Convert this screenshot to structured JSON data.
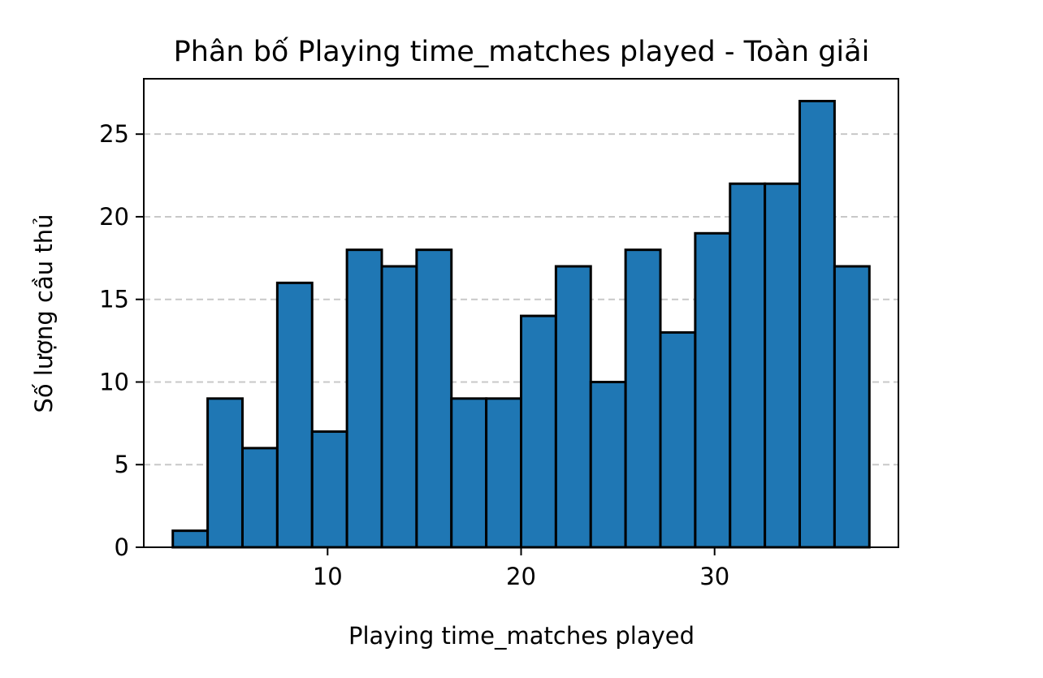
{
  "chart_data": {
    "type": "bar",
    "title": "Phân bố Playing time_matches played - Toàn giải",
    "xlabel": "Playing time_matches played",
    "ylabel": "Số lượng cầu thủ",
    "xlim": [
      0.5,
      39.5
    ],
    "ylim": [
      0,
      28.35
    ],
    "xticks": [
      10,
      20,
      30
    ],
    "yticks": [
      0,
      5,
      10,
      15,
      20,
      25
    ],
    "grid": "y-dashed",
    "bar_color": "#1f77b4",
    "bin_edges": [
      2,
      3.8,
      5.6,
      7.4,
      9.2,
      11,
      12.8,
      14.6,
      16.4,
      18.2,
      20,
      21.8,
      23.6,
      25.4,
      27.2,
      29,
      30.8,
      32.6,
      34.4,
      36.2,
      38
    ],
    "values": [
      1,
      9,
      6,
      16,
      7,
      18,
      17,
      18,
      9,
      9,
      14,
      17,
      10,
      18,
      13,
      19,
      22,
      22,
      27,
      17
    ]
  }
}
